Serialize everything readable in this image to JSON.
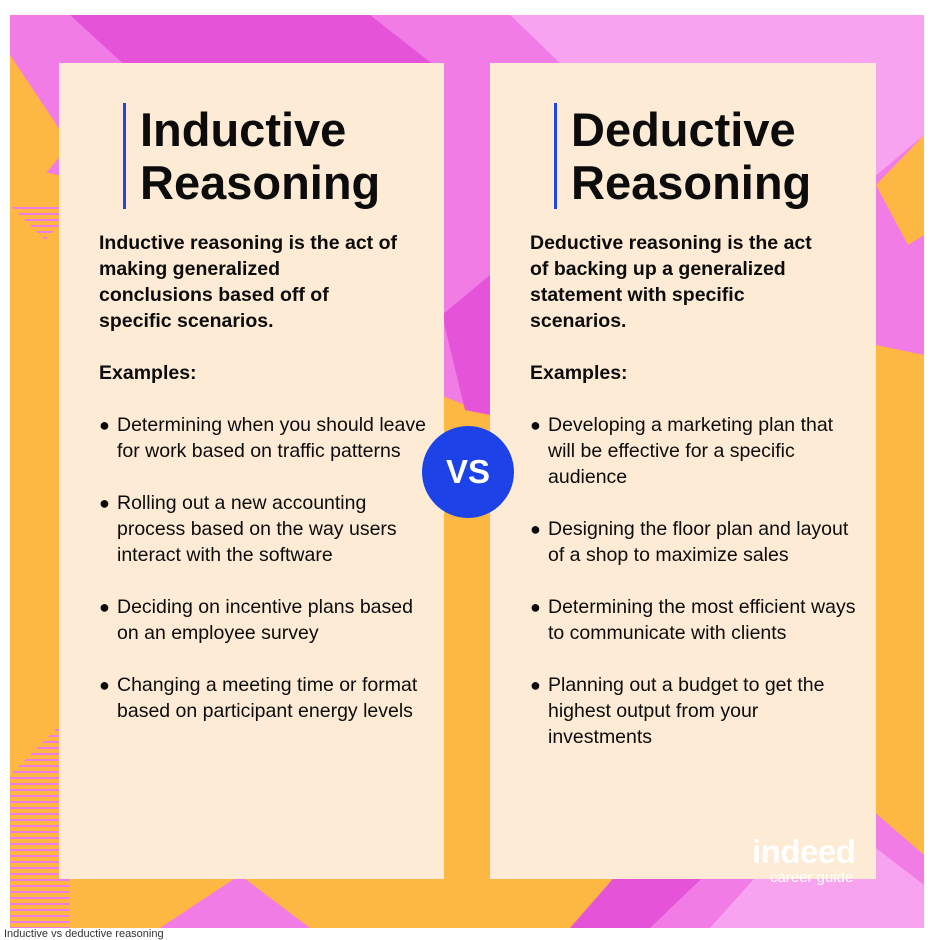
{
  "inductive": {
    "title_line1": "Inductive",
    "title_line2": "Reasoning",
    "description": "Inductive reasoning is the act of making generalized conclusions based off of specific scenarios.",
    "examples_label": "Examples:",
    "examples": [
      "Determining when you should leave for work based on traffic patterns",
      "Rolling out a new accounting process based on the way users interact with the software",
      "Deciding on incentive plans based on an employee survey",
      "Changing a meeting time or format based on participant energy levels"
    ]
  },
  "deductive": {
    "title_line1": "Deductive",
    "title_line2": "Reasoning",
    "description": "Deductive reasoning is the act of backing up a generalized statement with specific scenarios.",
    "examples_label": "Examples:",
    "examples": [
      "Developing a marketing plan that will be effective for a specific audience",
      "Designing the floor plan and layout of a shop to maximize sales",
      "Determining the most efficient ways to communicate with clients",
      "Planning out a budget to get the highest output from your investments"
    ]
  },
  "vs_label": "VS",
  "bullet": "●",
  "logo": {
    "brand": "indeed",
    "subtitle": "career guide"
  },
  "caption": "Inductive vs deductive reasoning",
  "colors": {
    "background_orange": "#FDB743",
    "background_pink": "#F17CE6",
    "background_magenta": "#E553D8",
    "card": "#FDEBD5",
    "accent_blue": "#1D43E8",
    "text": "#0c0c0c"
  },
  "icons": [
    "bullet-icon"
  ]
}
